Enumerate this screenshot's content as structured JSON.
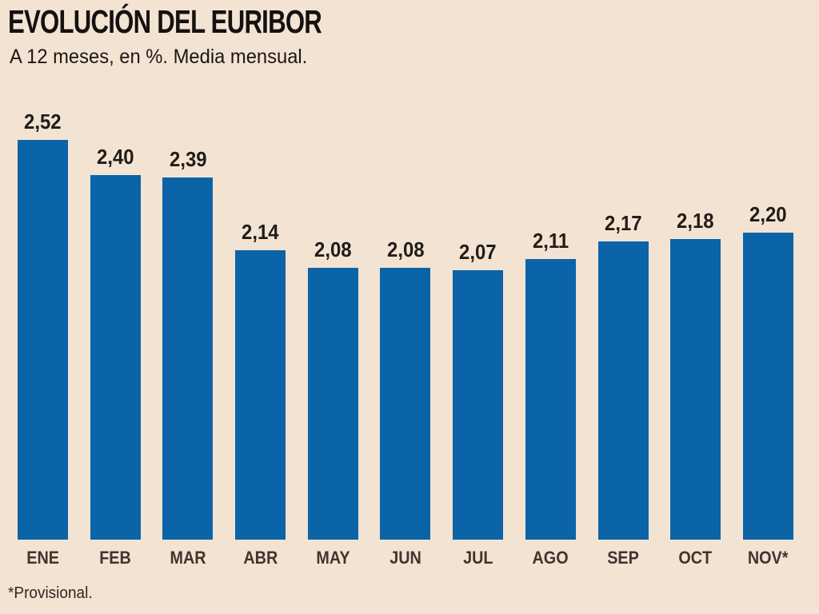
{
  "header": {
    "title": "EVOLUCIÓN DEL EURIBOR",
    "subtitle": "A 12 meses, en %. Media mensual."
  },
  "footnote": "*Provisional.",
  "colors": {
    "background": "#f3e3d3",
    "bar": "#0b64a7",
    "title_text": "#151110",
    "value_label": "#211c17",
    "month_label": "#3e362f"
  },
  "chart_data": {
    "type": "bar",
    "title": "EVOLUCIÓN DEL EURIBOR",
    "subtitle": "A 12 meses, en %. Media mensual.",
    "categories": [
      "ENE",
      "FEB",
      "MAR",
      "ABR",
      "MAY",
      "JUN",
      "JUL",
      "AGO",
      "SEP",
      "OCT",
      "NOV*"
    ],
    "values": [
      2.52,
      2.4,
      2.39,
      2.14,
      2.08,
      2.08,
      2.07,
      2.11,
      2.17,
      2.18,
      2.2
    ],
    "value_labels": [
      "2,52",
      "2,40",
      "2,39",
      "2,14",
      "2,08",
      "2,08",
      "2,07",
      "2,11",
      "2,17",
      "2,18",
      "2,20"
    ],
    "xlabel": "",
    "ylabel": "",
    "unit": "%",
    "ylim": [
      1.14,
      2.52
    ],
    "grid": false,
    "legend": "none",
    "annotation": "*Provisional."
  }
}
